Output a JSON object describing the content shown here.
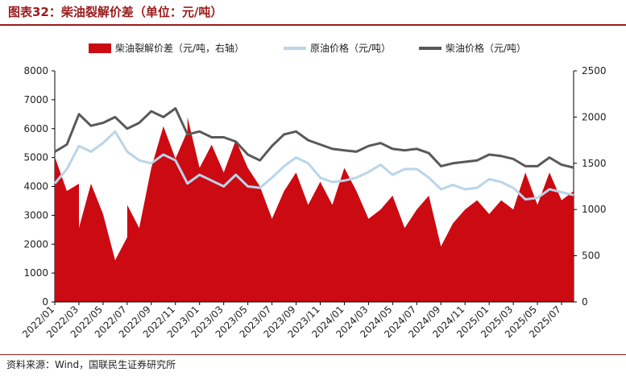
{
  "figure": {
    "title": "图表32：柴油裂解价差（单位：元/吨）",
    "source": "资料来源：Wind，国联民生证券研究所"
  },
  "colors": {
    "spread": "#cc0a12",
    "crude": "#b9d5ea",
    "diesel": "#595959",
    "brand": "#9b1b1b"
  },
  "chart_data": {
    "type": "area",
    "title": "",
    "legend_position": "top",
    "grid": false,
    "x_ticks": [
      "2022/01",
      "2022/03",
      "2022/05",
      "2022/07",
      "2022/09",
      "2022/11",
      "2023/01",
      "2023/03",
      "2023/05",
      "2023/07",
      "2023/09",
      "2023/11",
      "2024/01",
      "2024/03",
      "2024/05",
      "2024/07",
      "2024/09",
      "2024/11",
      "2025/01",
      "2025/03",
      "2025/05",
      "2025/07"
    ],
    "x_range": [
      "2022/01",
      "2025/08"
    ],
    "left_axis": {
      "min": 0,
      "max": 8000,
      "ticks": [
        0,
        1000,
        2000,
        3000,
        4000,
        5000,
        6000,
        7000,
        8000
      ]
    },
    "right_axis": {
      "min": 0,
      "max": 2500,
      "ticks": [
        0,
        500,
        1000,
        1500,
        2000,
        2500
      ]
    },
    "series": [
      {
        "name": "柴油裂解价差（元/吨，右轴）",
        "type": "area",
        "axis": "right",
        "points": [
          [
            "2022/01",
            1570
          ],
          [
            "2022/02",
            1200
          ],
          [
            "2022/03",
            1280
          ],
          [
            "2022/03",
            800
          ],
          [
            "2022/04",
            1280
          ],
          [
            "2022/05",
            950
          ],
          [
            "2022/06",
            450
          ],
          [
            "2022/07",
            700
          ],
          [
            "2022/07",
            1050
          ],
          [
            "2022/08",
            800
          ],
          [
            "2022/09",
            1450
          ],
          [
            "2022/10",
            1900
          ],
          [
            "2022/11",
            1550
          ],
          [
            "2022/12",
            1850
          ],
          [
            "2022/12",
            2000
          ],
          [
            "2023/01",
            1450
          ],
          [
            "2023/02",
            1700
          ],
          [
            "2023/03",
            1400
          ],
          [
            "2023/04",
            1750
          ],
          [
            "2023/05",
            1450
          ],
          [
            "2023/06",
            1250
          ],
          [
            "2023/07",
            900
          ],
          [
            "2023/08",
            1200
          ],
          [
            "2023/09",
            1400
          ],
          [
            "2023/10",
            1050
          ],
          [
            "2023/11",
            1300
          ],
          [
            "2023/12",
            1050
          ],
          [
            "2024/01",
            1450
          ],
          [
            "2024/02",
            1200
          ],
          [
            "2024/03",
            900
          ],
          [
            "2024/04",
            1000
          ],
          [
            "2024/05",
            1150
          ],
          [
            "2024/06",
            800
          ],
          [
            "2024/07",
            1000
          ],
          [
            "2024/08",
            1150
          ],
          [
            "2024/09",
            600
          ],
          [
            "2024/10",
            850
          ],
          [
            "2024/11",
            1000
          ],
          [
            "2024/12",
            1100
          ],
          [
            "2025/01",
            950
          ],
          [
            "2025/02",
            1100
          ],
          [
            "2025/03",
            1000
          ],
          [
            "2025/04",
            1400
          ],
          [
            "2025/05",
            1050
          ],
          [
            "2025/06",
            1400
          ],
          [
            "2025/07",
            1100
          ],
          [
            "2025/08",
            1200
          ]
        ]
      },
      {
        "name": "原油价格（元/吨）",
        "type": "line",
        "axis": "left",
        "points": [
          [
            "2022/01",
            4100
          ],
          [
            "2022/02",
            4600
          ],
          [
            "2022/03",
            5400
          ],
          [
            "2022/04",
            5200
          ],
          [
            "2022/05",
            5500
          ],
          [
            "2022/06",
            5900
          ],
          [
            "2022/07",
            5200
          ],
          [
            "2022/08",
            4900
          ],
          [
            "2022/09",
            4800
          ],
          [
            "2022/10",
            5100
          ],
          [
            "2022/11",
            4900
          ],
          [
            "2022/12",
            4100
          ],
          [
            "2023/01",
            4400
          ],
          [
            "2023/02",
            4200
          ],
          [
            "2023/03",
            4000
          ],
          [
            "2023/04",
            4400
          ],
          [
            "2023/05",
            4000
          ],
          [
            "2023/06",
            3950
          ],
          [
            "2023/07",
            4300
          ],
          [
            "2023/08",
            4700
          ],
          [
            "2023/09",
            5000
          ],
          [
            "2023/10",
            4800
          ],
          [
            "2023/11",
            4300
          ],
          [
            "2023/12",
            4150
          ],
          [
            "2024/01",
            4200
          ],
          [
            "2024/02",
            4300
          ],
          [
            "2024/03",
            4500
          ],
          [
            "2024/04",
            4750
          ],
          [
            "2024/05",
            4400
          ],
          [
            "2024/06",
            4600
          ],
          [
            "2024/07",
            4600
          ],
          [
            "2024/08",
            4300
          ],
          [
            "2024/09",
            3900
          ],
          [
            "2024/10",
            4050
          ],
          [
            "2024/11",
            3900
          ],
          [
            "2024/12",
            3950
          ],
          [
            "2025/01",
            4250
          ],
          [
            "2025/02",
            4150
          ],
          [
            "2025/03",
            3950
          ],
          [
            "2025/04",
            3550
          ],
          [
            "2025/05",
            3600
          ],
          [
            "2025/06",
            3900
          ],
          [
            "2025/07",
            3800
          ],
          [
            "2025/08",
            3700
          ]
        ]
      },
      {
        "name": "柴油价格（元/吨）",
        "type": "line",
        "axis": "left",
        "points": [
          [
            "2022/01",
            5200
          ],
          [
            "2022/02",
            5450
          ],
          [
            "2022/03",
            6500
          ],
          [
            "2022/04",
            6100
          ],
          [
            "2022/05",
            6200
          ],
          [
            "2022/06",
            6400
          ],
          [
            "2022/07",
            6000
          ],
          [
            "2022/08",
            6200
          ],
          [
            "2022/09",
            6600
          ],
          [
            "2022/10",
            6400
          ],
          [
            "2022/11",
            6700
          ],
          [
            "2022/12",
            5800
          ],
          [
            "2023/01",
            5900
          ],
          [
            "2023/02",
            5700
          ],
          [
            "2023/03",
            5700
          ],
          [
            "2023/04",
            5550
          ],
          [
            "2023/05",
            5100
          ],
          [
            "2023/06",
            4900
          ],
          [
            "2023/07",
            5400
          ],
          [
            "2023/08",
            5800
          ],
          [
            "2023/09",
            5900
          ],
          [
            "2023/10",
            5600
          ],
          [
            "2023/11",
            5450
          ],
          [
            "2023/12",
            5300
          ],
          [
            "2024/01",
            5250
          ],
          [
            "2024/02",
            5200
          ],
          [
            "2024/03",
            5400
          ],
          [
            "2024/04",
            5500
          ],
          [
            "2024/05",
            5300
          ],
          [
            "2024/06",
            5250
          ],
          [
            "2024/07",
            5300
          ],
          [
            "2024/08",
            5150
          ],
          [
            "2024/09",
            4700
          ],
          [
            "2024/10",
            4800
          ],
          [
            "2024/11",
            4850
          ],
          [
            "2024/12",
            4900
          ],
          [
            "2025/01",
            5100
          ],
          [
            "2025/02",
            5050
          ],
          [
            "2025/03",
            4950
          ],
          [
            "2025/04",
            4700
          ],
          [
            "2025/05",
            4700
          ],
          [
            "2025/06",
            5000
          ],
          [
            "2025/07",
            4750
          ],
          [
            "2025/08",
            4650
          ]
        ]
      }
    ]
  }
}
